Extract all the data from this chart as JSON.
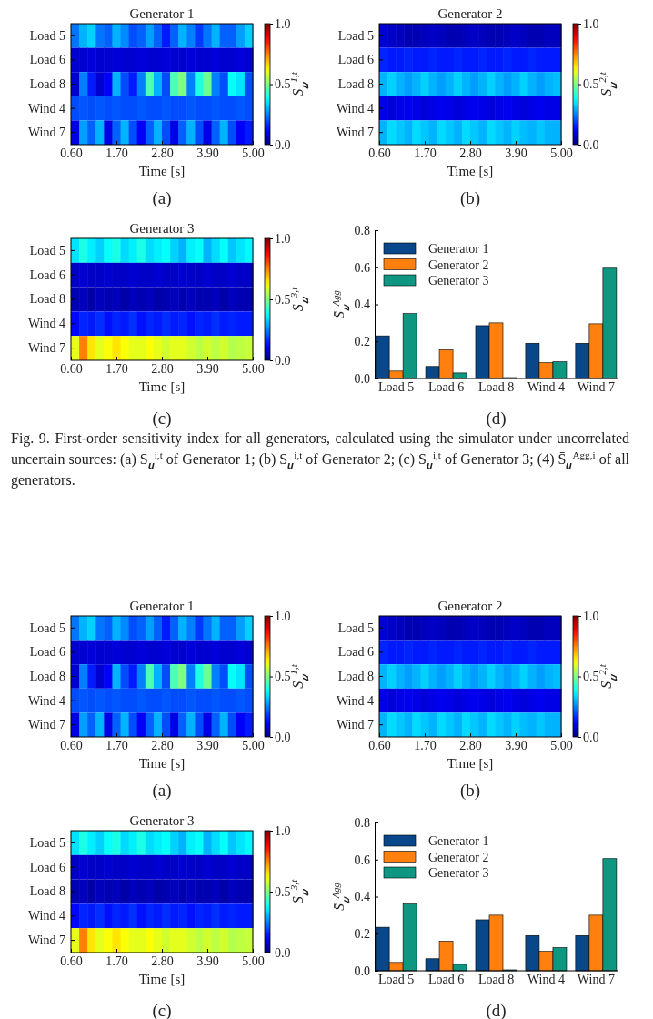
{
  "chart_data": [
    {
      "type": "heatmap",
      "title": "Generator 1",
      "xlabel": "Time [s]",
      "clabel": "S$_{𝒖}$$^{1,t}$",
      "annotations": [
        "(a)"
      ],
      "x": [
        0.7,
        0.9,
        1.1,
        1.3,
        1.5,
        1.7,
        1.9,
        2.1,
        2.3,
        2.5,
        2.7,
        2.9,
        3.1,
        3.3,
        3.5,
        3.7,
        3.9,
        4.1,
        4.3,
        4.5,
        4.7,
        4.9
      ],
      "xlim": [
        0.6,
        5.0
      ],
      "xticks": [
        {
          "value": 0.6,
          "label": "0.60"
        },
        {
          "value": 1.7,
          "label": "1.70"
        },
        {
          "value": 2.8,
          "label": "2.80"
        },
        {
          "value": 3.9,
          "label": "3.90"
        },
        {
          "value": 5.0,
          "label": "5.00"
        }
      ],
      "y_categories": [
        "Load 5",
        "Load 6",
        "Load 8",
        "Wind 4",
        "Wind 7"
      ],
      "cells": [
        [
          0.24,
          0.3,
          0.33,
          0.24,
          0.22,
          0.3,
          0.26,
          0.2,
          0.22,
          0.28,
          0.22,
          0.15,
          0.22,
          0.3,
          0.25,
          0.18,
          0.24,
          0.3,
          0.22,
          0.22,
          0.28,
          0.33
        ],
        [
          0.08,
          0.08,
          0.09,
          0.08,
          0.08,
          0.09,
          0.08,
          0.08,
          0.09,
          0.08,
          0.08,
          0.09,
          0.08,
          0.08,
          0.09,
          0.08,
          0.08,
          0.09,
          0.08,
          0.08,
          0.09,
          0.08
        ],
        [
          0.08,
          0.25,
          0.15,
          0.08,
          0.12,
          0.3,
          0.2,
          0.15,
          0.25,
          0.45,
          0.3,
          0.2,
          0.45,
          0.5,
          0.25,
          0.4,
          0.48,
          0.25,
          0.2,
          0.38,
          0.35,
          0.2
        ],
        [
          0.2,
          0.21,
          0.2,
          0.21,
          0.2,
          0.21,
          0.2,
          0.2,
          0.21,
          0.2,
          0.2,
          0.21,
          0.2,
          0.2,
          0.21,
          0.2,
          0.2,
          0.21,
          0.2,
          0.2,
          0.21,
          0.2
        ],
        [
          0.1,
          0.28,
          0.22,
          0.3,
          0.1,
          0.22,
          0.3,
          0.2,
          0.12,
          0.22,
          0.3,
          0.2,
          0.1,
          0.22,
          0.3,
          0.2,
          0.1,
          0.22,
          0.3,
          0.2,
          0.12,
          0.15
        ]
      ],
      "clim": [
        0,
        1
      ],
      "cticks": [
        {
          "value": 0,
          "label": "0.0"
        },
        {
          "value": 0.5,
          "label": "0.5"
        },
        {
          "value": 1,
          "label": "1.0"
        }
      ]
    },
    {
      "type": "heatmap",
      "title": "Generator 2",
      "xlabel": "Time [s]",
      "clabel": "S$_{𝒖}$$^{2,t}$",
      "annotations": [
        "(b)"
      ],
      "x": [
        0.7,
        0.9,
        1.1,
        1.3,
        1.5,
        1.7,
        1.9,
        2.1,
        2.3,
        2.5,
        2.7,
        2.9,
        3.1,
        3.3,
        3.5,
        3.7,
        3.9,
        4.1,
        4.3,
        4.5,
        4.7,
        4.9
      ],
      "xlim": [
        0.6,
        5.0
      ],
      "xticks": [
        {
          "value": 0.6,
          "label": "0.60"
        },
        {
          "value": 1.7,
          "label": "1.70"
        },
        {
          "value": 2.8,
          "label": "2.80"
        },
        {
          "value": 3.9,
          "label": "3.90"
        },
        {
          "value": 5.0,
          "label": "5.00"
        }
      ],
      "y_categories": [
        "Load 5",
        "Load 6",
        "Load 8",
        "Wind 4",
        "Wind 7"
      ],
      "cells": [
        [
          0.08,
          0.07,
          0.06,
          0.05,
          0.05,
          0.06,
          0.07,
          0.06,
          0.05,
          0.05,
          0.06,
          0.07,
          0.06,
          0.05,
          0.05,
          0.06,
          0.07,
          0.06,
          0.05,
          0.05,
          0.06,
          0.06
        ],
        [
          0.16,
          0.15,
          0.15,
          0.16,
          0.15,
          0.15,
          0.16,
          0.15,
          0.15,
          0.16,
          0.15,
          0.15,
          0.16,
          0.15,
          0.15,
          0.16,
          0.15,
          0.15,
          0.16,
          0.15,
          0.15,
          0.15
        ],
        [
          0.3,
          0.33,
          0.3,
          0.28,
          0.3,
          0.33,
          0.3,
          0.28,
          0.3,
          0.33,
          0.3,
          0.28,
          0.3,
          0.33,
          0.3,
          0.28,
          0.3,
          0.33,
          0.3,
          0.28,
          0.3,
          0.31
        ],
        [
          0.1,
          0.09,
          0.1,
          0.11,
          0.1,
          0.09,
          0.1,
          0.11,
          0.1,
          0.09,
          0.1,
          0.11,
          0.1,
          0.09,
          0.1,
          0.11,
          0.1,
          0.09,
          0.1,
          0.11,
          0.1,
          0.1
        ],
        [
          0.3,
          0.34,
          0.32,
          0.3,
          0.34,
          0.32,
          0.3,
          0.34,
          0.32,
          0.3,
          0.34,
          0.32,
          0.3,
          0.34,
          0.32,
          0.3,
          0.33,
          0.31,
          0.3,
          0.32,
          0.3,
          0.3
        ]
      ],
      "clim": [
        0,
        1
      ],
      "cticks": [
        {
          "value": 0,
          "label": "0.0"
        },
        {
          "value": 0.5,
          "label": "0.5"
        },
        {
          "value": 1,
          "label": "1.0"
        }
      ]
    },
    {
      "type": "heatmap",
      "title": "Generator 3",
      "xlabel": "Time [s]",
      "clabel": "S$_{𝒖}$$^{3,t}$",
      "annotations": [
        "(c)"
      ],
      "x": [
        0.7,
        0.9,
        1.1,
        1.3,
        1.5,
        1.7,
        1.9,
        2.1,
        2.3,
        2.5,
        2.7,
        2.9,
        3.1,
        3.3,
        3.5,
        3.7,
        3.9,
        4.1,
        4.3,
        4.5,
        4.7,
        4.9
      ],
      "xlim": [
        0.6,
        5.0
      ],
      "xticks": [
        {
          "value": 0.6,
          "label": "0.60"
        },
        {
          "value": 1.7,
          "label": "1.70"
        },
        {
          "value": 2.8,
          "label": "2.80"
        },
        {
          "value": 3.9,
          "label": "3.90"
        },
        {
          "value": 5.0,
          "label": "5.00"
        }
      ],
      "y_categories": [
        "Load 5",
        "Load 6",
        "Load 8",
        "Wind 4",
        "Wind 7"
      ],
      "cells": [
        [
          0.35,
          0.4,
          0.36,
          0.33,
          0.38,
          0.4,
          0.34,
          0.36,
          0.4,
          0.34,
          0.36,
          0.38,
          0.33,
          0.3,
          0.36,
          0.38,
          0.3,
          0.34,
          0.38,
          0.32,
          0.35,
          0.37
        ],
        [
          0.07,
          0.08,
          0.07,
          0.07,
          0.08,
          0.07,
          0.07,
          0.08,
          0.07,
          0.07,
          0.08,
          0.07,
          0.07,
          0.08,
          0.07,
          0.07,
          0.08,
          0.07,
          0.07,
          0.08,
          0.07,
          0.07
        ],
        [
          0.05,
          0.06,
          0.04,
          0.06,
          0.05,
          0.06,
          0.04,
          0.06,
          0.05,
          0.06,
          0.04,
          0.05,
          0.06,
          0.05,
          0.06,
          0.05,
          0.05,
          0.06,
          0.04,
          0.06,
          0.05,
          0.05
        ],
        [
          0.13,
          0.16,
          0.15,
          0.17,
          0.14,
          0.16,
          0.15,
          0.17,
          0.14,
          0.16,
          0.15,
          0.17,
          0.15,
          0.16,
          0.14,
          0.16,
          0.15,
          0.17,
          0.15,
          0.16,
          0.15,
          0.15
        ],
        [
          0.6,
          0.75,
          0.65,
          0.6,
          0.62,
          0.65,
          0.62,
          0.6,
          0.6,
          0.62,
          0.6,
          0.58,
          0.6,
          0.6,
          0.58,
          0.56,
          0.58,
          0.56,
          0.58,
          0.55,
          0.56,
          0.57
        ]
      ],
      "clim": [
        0,
        1
      ],
      "cticks": [
        {
          "value": 0,
          "label": "0.0"
        },
        {
          "value": 0.5,
          "label": "0.5"
        },
        {
          "value": 1,
          "label": "1.0"
        }
      ]
    },
    {
      "type": "bar",
      "ylabel": "S̄$_{𝒖}$$^{Agg}$",
      "annotations": [
        "(d)",
        "Fig. 9.  First-order sensitivity index for all generators, calculated using the simulator under uncorrelated uncertain sources: (a) S$_{𝒖}$$^{i,t}$ of Generator 1; (b) S$_{𝒖}$$^{i,t}$ of Generator 2; (c) S$_{𝒖}$$^{i,t}$ of Generator 3; (4) S̄$_{𝒖}$$^{Agg,i}$ of all generators."
      ],
      "categories": [
        "Load 5",
        "Load 6",
        "Load 8",
        "Wind 4",
        "Wind 7"
      ],
      "series": [
        {
          "name": "Generator 1",
          "color": "#08488a",
          "values": [
            0.23,
            0.065,
            0.285,
            0.19,
            0.19
          ]
        },
        {
          "name": "Generator 2",
          "color": "#ff7f0f",
          "values": [
            0.04,
            0.155,
            0.3,
            0.085,
            0.295
          ]
        },
        {
          "name": "Generator 3",
          "color": "#0e9680",
          "values": [
            0.35,
            0.03,
            0.005,
            0.09,
            0.595
          ]
        }
      ],
      "ylim": [
        0,
        0.8
      ],
      "yticks": [
        {
          "value": 0,
          "label": "0.0"
        },
        {
          "value": 0.2,
          "label": "0.2"
        },
        {
          "value": 0.4,
          "label": "0.4"
        },
        {
          "value": 0.6,
          "label": "0.6"
        },
        {
          "value": 0.8,
          "label": "0.8"
        }
      ],
      "legend": "top left"
    },
    {
      "type": "heatmap",
      "title": "Generator 1",
      "xlabel": "Time [s]",
      "clabel": "S$_{𝒖}$$^{1,t}$",
      "annotations": [
        "(a)"
      ],
      "x": [
        0.7,
        0.9,
        1.1,
        1.3,
        1.5,
        1.7,
        1.9,
        2.1,
        2.3,
        2.5,
        2.7,
        2.9,
        3.1,
        3.3,
        3.5,
        3.7,
        3.9,
        4.1,
        4.3,
        4.5,
        4.7,
        4.9
      ],
      "xlim": [
        0.6,
        5.0
      ],
      "xticks": [
        {
          "value": 0.6,
          "label": "0.60"
        },
        {
          "value": 1.7,
          "label": "1.70"
        },
        {
          "value": 2.8,
          "label": "2.80"
        },
        {
          "value": 3.9,
          "label": "3.90"
        },
        {
          "value": 5.0,
          "label": "5.00"
        }
      ],
      "y_categories": [
        "Load 5",
        "Load 6",
        "Load 8",
        "Wind 4",
        "Wind 7"
      ],
      "cells": [
        [
          0.24,
          0.3,
          0.33,
          0.24,
          0.22,
          0.3,
          0.26,
          0.2,
          0.22,
          0.28,
          0.22,
          0.15,
          0.22,
          0.3,
          0.25,
          0.18,
          0.24,
          0.3,
          0.22,
          0.22,
          0.28,
          0.33
        ],
        [
          0.08,
          0.08,
          0.09,
          0.08,
          0.08,
          0.09,
          0.08,
          0.08,
          0.09,
          0.08,
          0.08,
          0.09,
          0.08,
          0.08,
          0.09,
          0.08,
          0.08,
          0.09,
          0.08,
          0.08,
          0.09,
          0.08
        ],
        [
          0.08,
          0.25,
          0.15,
          0.08,
          0.12,
          0.3,
          0.2,
          0.15,
          0.25,
          0.45,
          0.3,
          0.2,
          0.45,
          0.5,
          0.25,
          0.4,
          0.48,
          0.25,
          0.2,
          0.38,
          0.35,
          0.2
        ],
        [
          0.2,
          0.21,
          0.2,
          0.21,
          0.2,
          0.21,
          0.2,
          0.2,
          0.21,
          0.2,
          0.2,
          0.21,
          0.2,
          0.2,
          0.21,
          0.2,
          0.2,
          0.21,
          0.2,
          0.2,
          0.21,
          0.2
        ],
        [
          0.1,
          0.28,
          0.22,
          0.3,
          0.1,
          0.22,
          0.3,
          0.2,
          0.12,
          0.22,
          0.3,
          0.2,
          0.1,
          0.22,
          0.3,
          0.2,
          0.1,
          0.22,
          0.3,
          0.2,
          0.12,
          0.15
        ]
      ],
      "clim": [
        0,
        1
      ],
      "cticks": [
        {
          "value": 0,
          "label": "0.0"
        },
        {
          "value": 0.5,
          "label": "0.5"
        },
        {
          "value": 1,
          "label": "1.0"
        }
      ]
    },
    {
      "type": "heatmap",
      "title": "Generator 2",
      "xlabel": "Time [s]",
      "clabel": "S$_{𝒖}$$^{2,t}$",
      "annotations": [
        "(b)"
      ],
      "x": [
        0.7,
        0.9,
        1.1,
        1.3,
        1.5,
        1.7,
        1.9,
        2.1,
        2.3,
        2.5,
        2.7,
        2.9,
        3.1,
        3.3,
        3.5,
        3.7,
        3.9,
        4.1,
        4.3,
        4.5,
        4.7,
        4.9
      ],
      "xlim": [
        0.6,
        5.0
      ],
      "xticks": [
        {
          "value": 0.6,
          "label": "0.60"
        },
        {
          "value": 1.7,
          "label": "1.70"
        },
        {
          "value": 2.8,
          "label": "2.80"
        },
        {
          "value": 3.9,
          "label": "3.90"
        },
        {
          "value": 5.0,
          "label": "5.00"
        }
      ],
      "y_categories": [
        "Load 5",
        "Load 6",
        "Load 8",
        "Wind 4",
        "Wind 7"
      ],
      "cells": [
        [
          0.08,
          0.07,
          0.06,
          0.05,
          0.05,
          0.06,
          0.07,
          0.06,
          0.05,
          0.05,
          0.06,
          0.07,
          0.06,
          0.05,
          0.05,
          0.06,
          0.07,
          0.06,
          0.05,
          0.05,
          0.06,
          0.06
        ],
        [
          0.16,
          0.15,
          0.15,
          0.16,
          0.15,
          0.15,
          0.16,
          0.15,
          0.15,
          0.16,
          0.15,
          0.15,
          0.16,
          0.15,
          0.15,
          0.16,
          0.15,
          0.15,
          0.16,
          0.15,
          0.15,
          0.15
        ],
        [
          0.3,
          0.33,
          0.3,
          0.28,
          0.3,
          0.33,
          0.3,
          0.28,
          0.3,
          0.33,
          0.3,
          0.28,
          0.3,
          0.33,
          0.3,
          0.28,
          0.3,
          0.33,
          0.3,
          0.28,
          0.3,
          0.31
        ],
        [
          0.1,
          0.09,
          0.1,
          0.11,
          0.1,
          0.09,
          0.1,
          0.11,
          0.1,
          0.09,
          0.1,
          0.11,
          0.1,
          0.09,
          0.1,
          0.11,
          0.1,
          0.09,
          0.1,
          0.11,
          0.1,
          0.1
        ],
        [
          0.3,
          0.34,
          0.32,
          0.3,
          0.34,
          0.32,
          0.3,
          0.34,
          0.32,
          0.3,
          0.34,
          0.32,
          0.3,
          0.34,
          0.32,
          0.3,
          0.33,
          0.31,
          0.3,
          0.32,
          0.3,
          0.3
        ]
      ],
      "clim": [
        0,
        1
      ],
      "cticks": [
        {
          "value": 0,
          "label": "0.0"
        },
        {
          "value": 0.5,
          "label": "0.5"
        },
        {
          "value": 1,
          "label": "1.0"
        }
      ]
    },
    {
      "type": "heatmap",
      "title": "Generator 3",
      "xlabel": "Time [s]",
      "clabel": "S$_{𝒖}$$^{3,t}$",
      "annotations": [
        "(c)"
      ],
      "x": [
        0.7,
        0.9,
        1.1,
        1.3,
        1.5,
        1.7,
        1.9,
        2.1,
        2.3,
        2.5,
        2.7,
        2.9,
        3.1,
        3.3,
        3.5,
        3.7,
        3.9,
        4.1,
        4.3,
        4.5,
        4.7,
        4.9
      ],
      "xlim": [
        0.6,
        5.0
      ],
      "xticks": [
        {
          "value": 0.6,
          "label": "0.60"
        },
        {
          "value": 1.7,
          "label": "1.70"
        },
        {
          "value": 2.8,
          "label": "2.80"
        },
        {
          "value": 3.9,
          "label": "3.90"
        },
        {
          "value": 5.0,
          "label": "5.00"
        }
      ],
      "y_categories": [
        "Load 5",
        "Load 6",
        "Load 8",
        "Wind 4",
        "Wind 7"
      ],
      "cells": [
        [
          0.35,
          0.4,
          0.36,
          0.33,
          0.38,
          0.4,
          0.34,
          0.36,
          0.4,
          0.34,
          0.36,
          0.38,
          0.33,
          0.3,
          0.36,
          0.38,
          0.3,
          0.34,
          0.38,
          0.32,
          0.35,
          0.37
        ],
        [
          0.07,
          0.08,
          0.07,
          0.07,
          0.08,
          0.07,
          0.07,
          0.08,
          0.07,
          0.07,
          0.08,
          0.07,
          0.07,
          0.08,
          0.07,
          0.07,
          0.08,
          0.07,
          0.07,
          0.08,
          0.07,
          0.07
        ],
        [
          0.05,
          0.06,
          0.04,
          0.06,
          0.05,
          0.06,
          0.04,
          0.06,
          0.05,
          0.06,
          0.04,
          0.05,
          0.06,
          0.05,
          0.06,
          0.05,
          0.05,
          0.06,
          0.04,
          0.06,
          0.05,
          0.05
        ],
        [
          0.13,
          0.16,
          0.15,
          0.17,
          0.14,
          0.16,
          0.15,
          0.17,
          0.14,
          0.16,
          0.15,
          0.17,
          0.15,
          0.16,
          0.14,
          0.16,
          0.15,
          0.17,
          0.15,
          0.16,
          0.15,
          0.15
        ],
        [
          0.6,
          0.75,
          0.65,
          0.6,
          0.62,
          0.65,
          0.62,
          0.6,
          0.6,
          0.62,
          0.6,
          0.58,
          0.6,
          0.6,
          0.58,
          0.56,
          0.58,
          0.56,
          0.58,
          0.55,
          0.56,
          0.57
        ]
      ],
      "clim": [
        0,
        1
      ],
      "cticks": [
        {
          "value": 0,
          "label": "0.0"
        },
        {
          "value": 0.5,
          "label": "0.5"
        },
        {
          "value": 1,
          "label": "1.0"
        }
      ]
    },
    {
      "type": "bar",
      "ylabel": "S̄$_{𝒖}$$^{Agg}$",
      "annotations": [
        "(d)"
      ],
      "categories": [
        "Load 5",
        "Load 6",
        "Load 8",
        "Wind 4",
        "Wind 7"
      ],
      "series": [
        {
          "name": "Generator 1",
          "color": "#08488a",
          "values": [
            0.235,
            0.065,
            0.275,
            0.19,
            0.19
          ]
        },
        {
          "name": "Generator 2",
          "color": "#ff7f0f",
          "values": [
            0.045,
            0.16,
            0.3,
            0.105,
            0.3
          ]
        },
        {
          "name": "Generator 3",
          "color": "#0e9680",
          "values": [
            0.36,
            0.035,
            0.005,
            0.125,
            0.605
          ]
        }
      ],
      "ylim": [
        0,
        0.8
      ],
      "yticks": [
        {
          "value": 0,
          "label": "0.0"
        },
        {
          "value": 0.2,
          "label": "0.2"
        },
        {
          "value": 0.4,
          "label": "0.4"
        },
        {
          "value": 0.6,
          "label": "0.6"
        },
        {
          "value": 0.8,
          "label": "0.8"
        }
      ],
      "legend": "top left"
    }
  ]
}
